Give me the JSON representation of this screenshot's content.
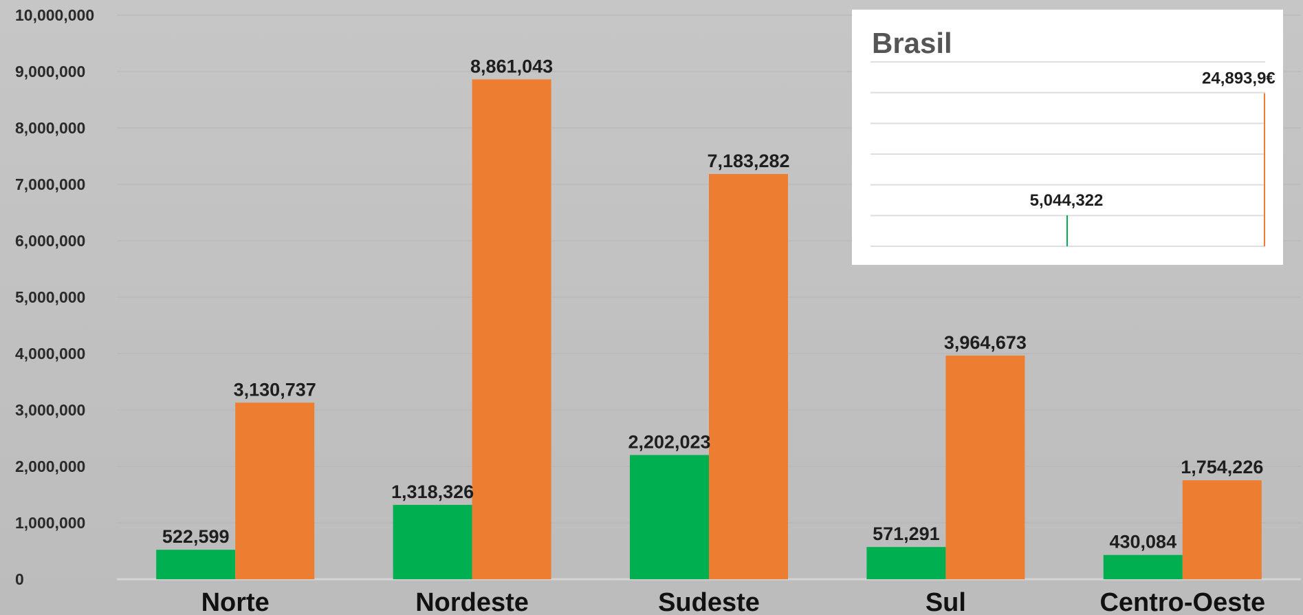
{
  "chart_data": [
    {
      "type": "bar",
      "categories": [
        "Norte",
        "Nordeste",
        "Sudeste",
        "Sul",
        "Centro-Oeste"
      ],
      "series": [
        {
          "values": [
            522599,
            1318326,
            2202023,
            571291,
            430084
          ],
          "color": "#00b050"
        },
        {
          "values": [
            3130737,
            8861043,
            7183282,
            3964673,
            1754226
          ],
          "color": "#ed7d31"
        }
      ],
      "value_labels": [
        [
          "522,599",
          "1,318,326",
          "2,202,023",
          "571,291",
          "430,084"
        ],
        [
          "3,130,737",
          "8,861,043",
          "7,183,282",
          "3,964,673",
          "1,754,226"
        ]
      ],
      "yticks": [
        "0",
        "1,000,000",
        "2,000,000",
        "3,000,000",
        "4,000,000",
        "5,000,000",
        "6,000,000",
        "7,000,000",
        "8,000,000",
        "9,000,000",
        "10,000,000"
      ],
      "ylim": [
        0,
        10000000
      ],
      "grid": true
    },
    {
      "type": "bar",
      "title": "Brasil",
      "categories": [
        "Brasil"
      ],
      "series": [
        {
          "values": [
            5044322
          ],
          "color": "#00b050"
        },
        {
          "values": [
            24893969
          ],
          "color": "#ed7d31"
        }
      ],
      "value_labels": [
        "5,044,322",
        "24,893,9€"
      ],
      "ylim": [
        0,
        30000000
      ],
      "grid": true
    }
  ]
}
